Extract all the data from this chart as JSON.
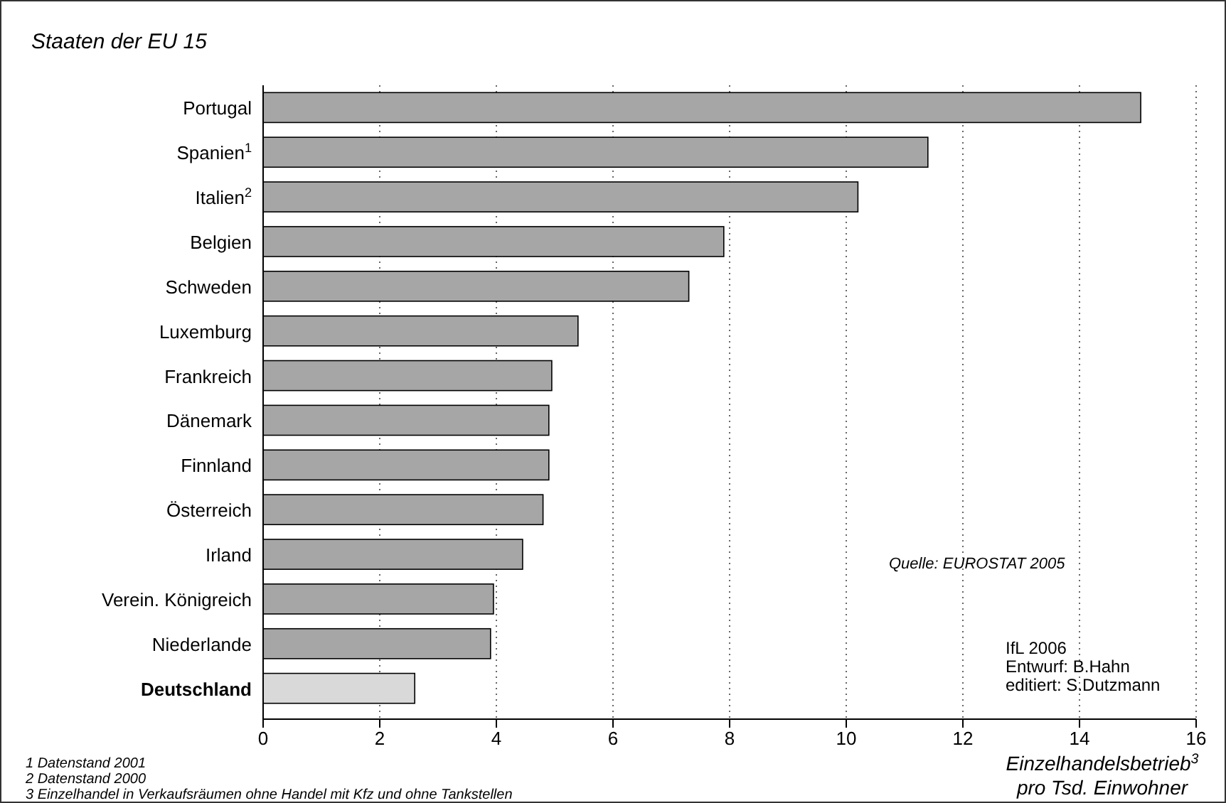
{
  "chart_data": {
    "type": "bar",
    "orientation": "horizontal",
    "title": "Staaten der EU 15",
    "xlabel": "Einzelhandelsbetrieb$^{3}$ pro Tsd. Einwohner",
    "categories": [
      "Portugal",
      "Spanien$^{1}$",
      "Italien$^{2}$",
      "Belgien",
      "Schweden",
      "Luxemburg",
      "Frankreich",
      "Dänemark",
      "Finnland",
      "Österreich",
      "Irland",
      "Verein. Königreich",
      "Niederlande",
      "Deutschland"
    ],
    "values": [
      15.05,
      11.4,
      10.2,
      7.9,
      7.3,
      5.4,
      4.95,
      4.9,
      4.9,
      4.8,
      4.45,
      3.95,
      3.9,
      2.6
    ],
    "colors": [
      "#a6a6a6",
      "#a6a6a6",
      "#a6a6a6",
      "#a6a6a6",
      "#a6a6a6",
      "#a6a6a6",
      "#a6a6a6",
      "#a6a6a6",
      "#a6a6a6",
      "#a6a6a6",
      "#a6a6a6",
      "#a6a6a6",
      "#a6a6a6",
      "#d9d9d9"
    ],
    "xlim": [
      0,
      16
    ],
    "xticks": [
      0,
      2,
      4,
      6,
      8,
      10,
      12,
      14,
      16
    ],
    "grid": "x",
    "annotations": [
      "Quelle: EUROSTAT 2005",
      "IfL 2006",
      "Entwurf: B.Hahn",
      "editiert: S.Dutzmann",
      "1  Datenstand 2001",
      "2  Datenstand 2000",
      "3  Einzelhandel in Verkaufsräumen ohne Handel mit Kfz und ohne Tankstellen"
    ]
  }
}
